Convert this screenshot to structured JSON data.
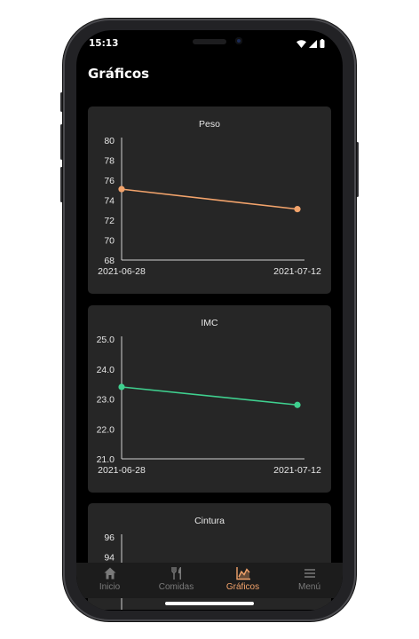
{
  "status": {
    "time": "15:13"
  },
  "header": {
    "title": "Gráficos"
  },
  "colors": {
    "peso": "#f2a36b",
    "imc": "#3fd08f",
    "accent": "#f2a36b"
  },
  "chart_data": [
    {
      "type": "line",
      "title": "Peso",
      "x": [
        "2021-06-28",
        "2021-07-12"
      ],
      "series": [
        {
          "values": [
            75.1,
            73.1
          ]
        }
      ],
      "ylim": [
        68,
        80
      ],
      "yticks": [
        "80",
        "78",
        "76",
        "74",
        "72",
        "70",
        "68"
      ],
      "grid": false
    },
    {
      "type": "line",
      "title": "IMC",
      "x": [
        "2021-06-28",
        "2021-07-12"
      ],
      "series": [
        {
          "values": [
            23.4,
            22.8
          ]
        }
      ],
      "ylim": [
        21.0,
        25.0
      ],
      "yticks": [
        "25.0",
        "24.0",
        "23.0",
        "22.0",
        "21.0"
      ],
      "grid": false
    },
    {
      "type": "line",
      "title": "Cintura",
      "yticks": [
        "96",
        "94"
      ]
    }
  ],
  "nav": {
    "items": [
      {
        "label": "Inicio",
        "icon": "home-icon"
      },
      {
        "label": "Comidas",
        "icon": "utensils-icon"
      },
      {
        "label": "Gráficos",
        "icon": "chart-icon"
      },
      {
        "label": "Menú",
        "icon": "menu-icon"
      }
    ]
  }
}
